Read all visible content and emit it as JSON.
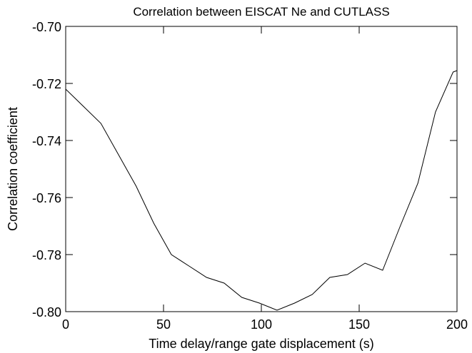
{
  "chart_data": {
    "type": "line",
    "title": "Correlation between EISCAT Ne and CUTLASS",
    "x_label": "Time delay/range gate displacement (s)",
    "y_label": "Correlation coefficient",
    "x": [
      0,
      9,
      18,
      27,
      36,
      45,
      54,
      63,
      72,
      81,
      90,
      99,
      108,
      117,
      126,
      135,
      144,
      153,
      162,
      171,
      180,
      189,
      198,
      200
    ],
    "series": [
      {
        "name": "Correlation",
        "color": "#000000",
        "values": [
          -0.722,
          -0.728,
          -0.734,
          -0.745,
          -0.756,
          -0.769,
          -0.78,
          -0.784,
          -0.788,
          -0.79,
          -0.795,
          -0.797,
          -0.7995,
          -0.797,
          -0.794,
          -0.788,
          -0.787,
          -0.783,
          -0.7855,
          -0.77,
          -0.755,
          -0.73,
          -0.716,
          -0.7155
        ]
      }
    ],
    "xlim": [
      0,
      200
    ],
    "xticks": [
      0,
      50,
      100,
      150,
      200
    ],
    "ylim": [
      -0.8,
      -0.7
    ],
    "yticks": [
      {
        "value": -0.8,
        "label": "-0.80"
      },
      {
        "value": -0.78,
        "label": "-0.78"
      },
      {
        "value": -0.76,
        "label": "-0.76"
      },
      {
        "value": -0.74,
        "label": "-0.74"
      },
      {
        "value": -0.72,
        "label": "-0.72"
      },
      {
        "value": -0.7,
        "label": "-0.70"
      }
    ],
    "grid": false
  }
}
